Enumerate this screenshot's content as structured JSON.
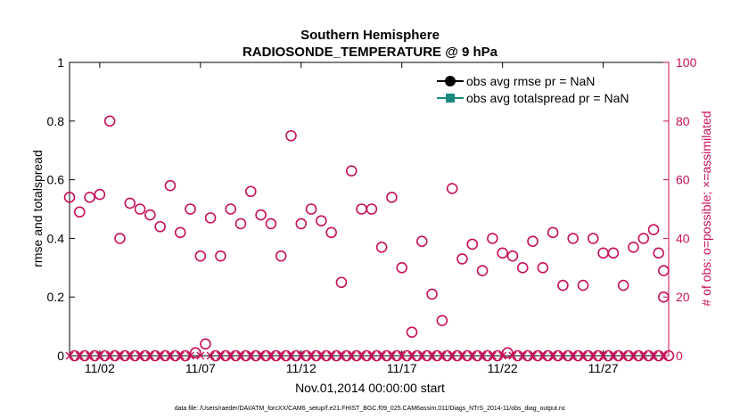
{
  "chart_data": {
    "type": "scatter",
    "title": "Southern Hemisphere",
    "subtitle": "RADIOSONDE_TEMPERATURE @ 9 hPa",
    "xlabel": "Nov.01,2014 00:00:00 start",
    "ylabel": "rmse and totalspread",
    "ylabel_right": "# of obs: o=possible; ×=assimilated",
    "xlim": [
      0.5,
      30.25
    ],
    "ylim": [
      0,
      1
    ],
    "ylim_right": [
      0,
      100
    ],
    "yticks": [
      0,
      0.2,
      0.4,
      0.6,
      0.8,
      1
    ],
    "ytick_labels": [
      "0",
      "0.2",
      "0.4",
      "0.6",
      "0.8",
      "1"
    ],
    "yticks_right": [
      0,
      20,
      40,
      60,
      80,
      100
    ],
    "ytick_labels_right": [
      "0",
      "20",
      "40",
      "60",
      "80",
      "100"
    ],
    "xticks": [
      2,
      7,
      12,
      17,
      22,
      27
    ],
    "xtick_labels": [
      "11/02",
      "11/07",
      "11/12",
      "11/17",
      "11/22",
      "11/27"
    ],
    "legend": {
      "position": "top-right",
      "entries": [
        {
          "label": "obs avg rmse pr = NaN",
          "color": "#000000"
        },
        {
          "label": "obs avg totalspread pr = NaN",
          "color": "#1a8a80"
        }
      ]
    },
    "series": [
      {
        "name": "possible",
        "marker": "o",
        "color": "#c8105a",
        "x": [
          0.5,
          1.0,
          1.5,
          2.0,
          2.5,
          3.0,
          3.5,
          4.0,
          4.5,
          5.0,
          5.5,
          6.0,
          6.5,
          7.0,
          7.5,
          8.0,
          8.5,
          9.0,
          9.5,
          10.0,
          10.5,
          11.0,
          11.5,
          12.0,
          12.5,
          13.0,
          13.5,
          14.0,
          14.5,
          15.0,
          15.5,
          16.0,
          16.5,
          17.0,
          17.5,
          18.0,
          18.5,
          19.0,
          19.5,
          20.0,
          20.5,
          21.0,
          21.5,
          22.0,
          22.5,
          23.0,
          23.5,
          24.0,
          24.5,
          25.0,
          25.5,
          26.0,
          26.5,
          27.0,
          27.5,
          28.0,
          28.5,
          29.0,
          29.5,
          30.0
        ],
        "y": [
          54,
          49,
          54,
          55,
          80,
          40,
          52,
          50,
          48,
          44,
          58,
          42,
          50,
          34,
          47,
          34,
          50,
          45,
          56,
          48,
          45,
          34,
          75,
          45,
          50,
          46,
          42,
          25,
          63,
          50,
          50,
          37,
          54,
          30,
          8,
          39,
          21,
          12,
          57,
          33,
          38,
          29,
          40,
          35,
          34,
          30,
          39,
          30,
          42,
          24,
          40,
          24,
          40,
          35,
          35,
          24,
          37,
          40,
          43,
          29
        ]
      },
      {
        "name": "assimilated",
        "marker": "x",
        "color": "#c8105a",
        "x": [
          0.5,
          1.0,
          1.5,
          2.0,
          2.5,
          3.0,
          3.5,
          4.0,
          4.5,
          5.0,
          5.5,
          6.0,
          6.5,
          7.0,
          7.5,
          8.0,
          8.5,
          9.0,
          9.5,
          10.0,
          10.5,
          11.0,
          11.5,
          12.0,
          12.5,
          13.0,
          13.5,
          14.0,
          14.5,
          15.0,
          15.5,
          16.0,
          16.5,
          17.0,
          17.5,
          18.0,
          18.5,
          19.0,
          19.5,
          20.0,
          20.5,
          21.0,
          21.5,
          22.0,
          22.5,
          23.0,
          23.5,
          24.0,
          24.5,
          25.0,
          25.5,
          26.0,
          26.5,
          27.0,
          27.5,
          28.0,
          28.5,
          29.0,
          29.5,
          30.0
        ],
        "y": [
          0,
          0,
          0,
          0,
          0,
          0,
          0,
          0,
          0,
          0,
          0,
          0,
          0,
          0,
          0,
          0,
          0,
          0,
          0,
          0,
          0,
          0,
          0,
          0,
          0,
          0,
          0,
          0,
          0,
          0,
          0,
          0,
          0,
          0,
          0,
          0,
          0,
          0,
          0,
          0,
          0,
          0,
          0,
          0,
          0,
          0,
          0,
          0,
          0,
          0,
          0,
          0,
          0,
          0,
          0,
          0,
          0,
          0,
          0,
          0
        ]
      },
      {
        "name": "possible-low",
        "marker": "o",
        "color": "#c8105a",
        "x": [
          1.25,
          1.75,
          2.25,
          2.75,
          3.25,
          3.75,
          4.25,
          4.75,
          5.25,
          5.75,
          6.25,
          6.75,
          7.25,
          7.75,
          8.25,
          8.75,
          9.25,
          9.75,
          10.25,
          10.75,
          11.25,
          11.75,
          12.25,
          12.75,
          13.25,
          13.75,
          14.25,
          14.75,
          15.25,
          15.75,
          16.25,
          16.75,
          17.25,
          17.75,
          18.25,
          18.75,
          19.25,
          19.75,
          20.25,
          20.75,
          21.25,
          21.75,
          22.25,
          22.75,
          23.25,
          23.75,
          24.25,
          24.75,
          25.25,
          25.75,
          26.25,
          26.75,
          27.25,
          27.75,
          28.25,
          28.75,
          29.25,
          29.75,
          30.25,
          0.75
        ],
        "y": [
          0,
          0,
          0,
          0,
          0,
          0,
          0,
          0,
          0,
          0,
          0,
          1,
          4,
          0,
          0,
          0,
          0,
          0,
          0,
          0,
          0,
          0,
          0,
          0,
          0,
          0,
          0,
          0,
          0,
          0,
          0,
          0,
          0,
          0,
          0,
          0,
          0,
          0,
          0,
          0,
          0,
          0,
          1,
          0,
          0,
          0,
          0,
          0,
          0,
          0,
          0,
          0,
          0,
          0,
          0,
          0,
          0,
          0,
          0,
          0
        ]
      }
    ],
    "extra_points": [
      {
        "x": 29.75,
        "y": 35
      },
      {
        "x": 30.0,
        "y": 20
      }
    ]
  },
  "footnote": "data file: /Users/raeder/DAI/ATM_forcXX/CAM6_setup/f.e21.FHIST_BGC.f09_025.CAM6assim.011/Diags_NTrS_2014-11/obs_diag_output.nc"
}
